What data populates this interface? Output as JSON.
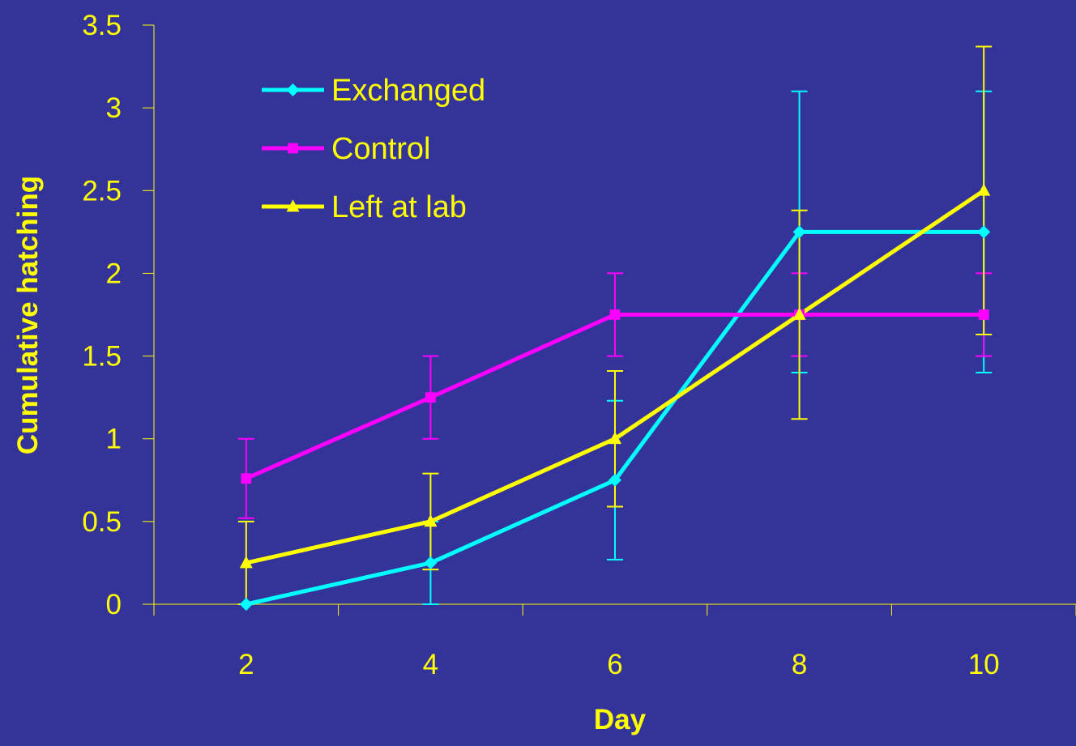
{
  "colors": {
    "background": "#333399",
    "axis": "#FFFF00",
    "text": "#FFFF00"
  },
  "chart_data": {
    "type": "line",
    "title": "",
    "xlabel": "Day",
    "ylabel": "Cumulative hatching",
    "categories": [
      "2",
      "4",
      "6",
      "8",
      "10"
    ],
    "x": [
      2,
      4,
      6,
      8,
      10
    ],
    "ylim": [
      0,
      3.5
    ],
    "yticks": [
      "0",
      "0.5",
      "1",
      "1.5",
      "2",
      "2.5",
      "3",
      "3.5"
    ],
    "grid": false,
    "legend_position": "top-left",
    "series": [
      {
        "name": "Exchanged",
        "color": "#00FFFF",
        "marker": "diamond",
        "values": [
          0,
          0.25,
          0.75,
          2.25,
          2.25
        ],
        "error": [
          0,
          0.25,
          0.48,
          0.85,
          0.85
        ]
      },
      {
        "name": "Control",
        "color": "#FF00FF",
        "marker": "square",
        "values": [
          0.76,
          1.25,
          1.75,
          1.75,
          1.75
        ],
        "error": [
          0.24,
          0.25,
          0.25,
          0.25,
          0.25
        ]
      },
      {
        "name": "Left at lab",
        "color": "#FFFF00",
        "marker": "triangle",
        "values": [
          0.25,
          0.5,
          1.0,
          1.75,
          2.5
        ],
        "error": [
          0.25,
          0.29,
          0.41,
          0.63,
          0.87
        ]
      }
    ]
  }
}
